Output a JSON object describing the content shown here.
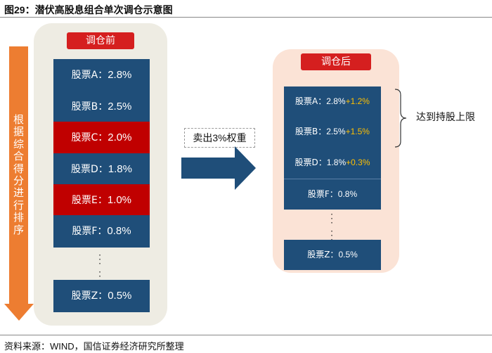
{
  "title": "图29：潜伏高股息组合单次调仓示意图",
  "source": "资料来源：WIND，国信证券经济研究所整理",
  "left_axis_label": "根据综合得分进行排序",
  "before": {
    "label": "调仓前",
    "items": [
      {
        "name": "股票A：",
        "value": "2.8%",
        "highlight": false
      },
      {
        "name": "股票B：",
        "value": "2.5%",
        "highlight": false
      },
      {
        "name": "股票C：",
        "value": "2.0%",
        "highlight": true
      },
      {
        "name": "股票D：",
        "value": "1.8%",
        "highlight": false
      },
      {
        "name": "股票E：",
        "value": "1.0%",
        "highlight": true
      },
      {
        "name": "股票F：",
        "value": "0.8%",
        "highlight": false
      }
    ],
    "last": {
      "name": "股票Z：",
      "value": "0.5%"
    }
  },
  "action": {
    "pre": "卖出",
    "value": "3%",
    "post": "权重"
  },
  "after": {
    "label": "调仓后",
    "items": [
      {
        "name": "股票A：",
        "value": "2.8%",
        "delta": "+1.2%"
      },
      {
        "name": "股票B：",
        "value": "2.5%",
        "delta": "+1.5%"
      },
      {
        "name": "股票D：",
        "value": "1.8%",
        "delta": "+0.3%"
      },
      {
        "name": "股票F：",
        "value": "0.8%",
        "delta": ""
      }
    ],
    "last": {
      "name": "股票Z：",
      "value": "0.5%"
    }
  },
  "note": "达到持股上限",
  "colors": {
    "navy": "#1F4E79",
    "red": "#D51F1F",
    "highlight_red": "#C00000",
    "orange": "#ED7D31",
    "gold": "#FFC000"
  }
}
